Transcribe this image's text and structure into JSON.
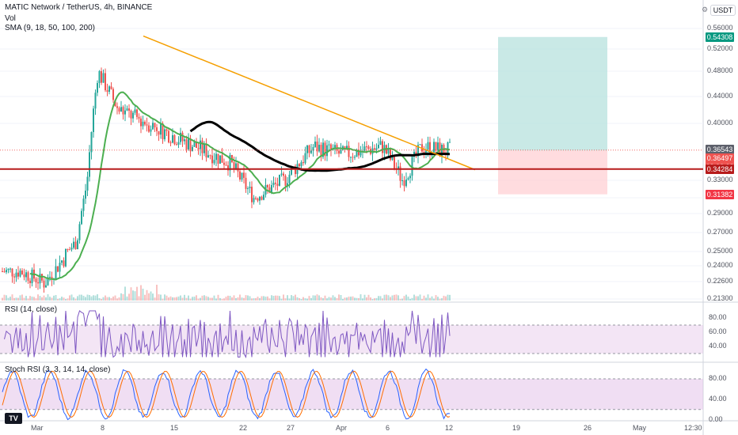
{
  "header": {
    "symbol": "MATIC Network / TetherUS, 4h, BINANCE",
    "vol": "Vol",
    "sma": "SMA (9, 18, 50, 100, 200)"
  },
  "toolbar": {
    "currency": "USDT",
    "gear_icon": "gear-icon"
  },
  "price_axis": {
    "ticks": [
      "0.56000",
      "0.52000",
      "0.48000",
      "0.44000",
      "0.40000",
      "0.33000",
      "0.31000",
      "0.29000",
      "0.27000",
      "0.25000",
      "0.24000",
      "0.22600",
      "0.21300"
    ],
    "tags": [
      {
        "value": "0.54308",
        "color": "#089981"
      },
      {
        "value": "0.36543",
        "color": "#5d606b"
      },
      {
        "value": "0.36497",
        "color": "#ef5350"
      },
      {
        "value": "03:26:28",
        "color": "#ef5350"
      },
      {
        "value": "0.34284",
        "color": "#b71c1c"
      },
      {
        "value": "0.31382",
        "color": "#f23645"
      }
    ]
  },
  "time_axis": {
    "ticks": [
      "Mar",
      "8",
      "15",
      "22",
      "27",
      "Apr",
      "6",
      "12",
      "19",
      "26",
      "May",
      "12:30"
    ]
  },
  "rsi_panel": {
    "label": "RSI (14, close)",
    "ticks": [
      "80.00",
      "60.00",
      "40.00"
    ]
  },
  "stoch_panel": {
    "label": "Stoch RSI (3, 3, 14, 14, close)",
    "ticks": [
      "80.00",
      "40.00",
      "0.00"
    ]
  },
  "tv_logo": "TV",
  "colors": {
    "up": "#26a69a",
    "down": "#ef5350",
    "sma_green": "#4caf50",
    "sma_black": "#000000",
    "trendline": "#f59f00",
    "support": "#b71c1c",
    "tp_zone": "#b2dfdb",
    "sl_zone": "#ffcdd2",
    "rsi": "#7e57c2",
    "rsi_band": "#e1bee7",
    "stoch_k": "#2962ff",
    "stoch_d": "#ff6d00"
  },
  "chart_data": {
    "type": "candlestick",
    "title": "MATIC Network / TetherUS, 4h, BINANCE",
    "yscale": "log",
    "ylim": [
      0.21,
      0.58
    ],
    "x_ticks": [
      "Mar",
      "8",
      "15",
      "22",
      "27",
      "Apr",
      "6",
      "12",
      "19",
      "26",
      "May"
    ],
    "approx_price_path": {
      "dates": [
        "Mar 1",
        "Mar 5",
        "Mar 8",
        "Mar 9",
        "Mar 10",
        "Mar 12",
        "Mar 15",
        "Mar 18",
        "Mar 22",
        "Mar 24",
        "Mar 27",
        "Mar 30",
        "Apr 2",
        "Apr 6",
        "Apr 8",
        "Apr 10",
        "Apr 12"
      ],
      "close": [
        0.235,
        0.225,
        0.26,
        0.33,
        0.48,
        0.42,
        0.4,
        0.38,
        0.35,
        0.31,
        0.33,
        0.37,
        0.36,
        0.37,
        0.33,
        0.37,
        0.365
      ]
    },
    "annotations": {
      "support_line": 0.34284,
      "take_profit": 0.54308,
      "stop_loss": 0.31382,
      "entry": 0.36497,
      "last_price": 0.36543
    },
    "series": [
      {
        "name": "SMA",
        "color": "#4caf50"
      },
      {
        "name": "SMA",
        "color": "#000000"
      }
    ],
    "rsi": {
      "label": "RSI (14, close)",
      "levels": [
        70,
        30
      ],
      "ylim": [
        20,
        100
      ]
    },
    "stoch_rsi": {
      "label": "Stoch RSI (3, 3, 14, 14, close)",
      "levels": [
        80,
        20
      ]
    }
  }
}
